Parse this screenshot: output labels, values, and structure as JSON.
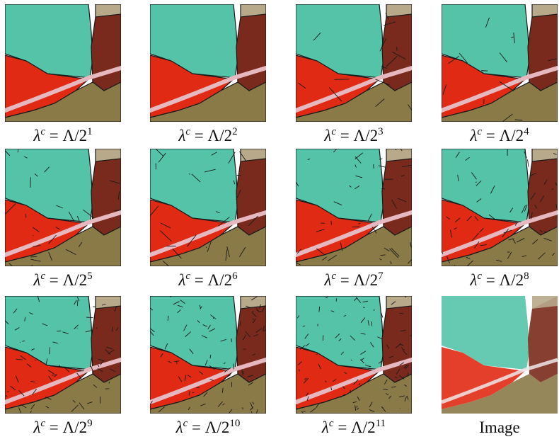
{
  "figure": {
    "panels": [
      {
        "id": "p1",
        "caption_exp": "1",
        "detail": 0
      },
      {
        "id": "p2",
        "caption_exp": "2",
        "detail": 0
      },
      {
        "id": "p3",
        "caption_exp": "3",
        "detail": 1
      },
      {
        "id": "p4",
        "caption_exp": "4",
        "detail": 1
      },
      {
        "id": "p5",
        "caption_exp": "5",
        "detail": 2
      },
      {
        "id": "p6",
        "caption_exp": "6",
        "detail": 2
      },
      {
        "id": "p7",
        "caption_exp": "7",
        "detail": 3
      },
      {
        "id": "p8",
        "caption_exp": "8",
        "detail": 4
      },
      {
        "id": "p9",
        "caption_exp": "9",
        "detail": 5
      },
      {
        "id": "p10",
        "caption_exp": "10",
        "detail": 6
      },
      {
        "id": "p11",
        "caption_exp": "11",
        "detail": 7
      }
    ],
    "caption_prefix": "λ",
    "caption_sup_c": "c",
    "caption_mid": " = Λ/2",
    "image_caption": "Image"
  },
  "colors": {
    "teal": "#55c3a8",
    "red": "#e02a14",
    "dark_red": "#7a2a1c",
    "olive": "#8a7a48",
    "tan": "#b8a98a",
    "pink_road": "#e6b8c0",
    "line": "#1a1a1a"
  }
}
